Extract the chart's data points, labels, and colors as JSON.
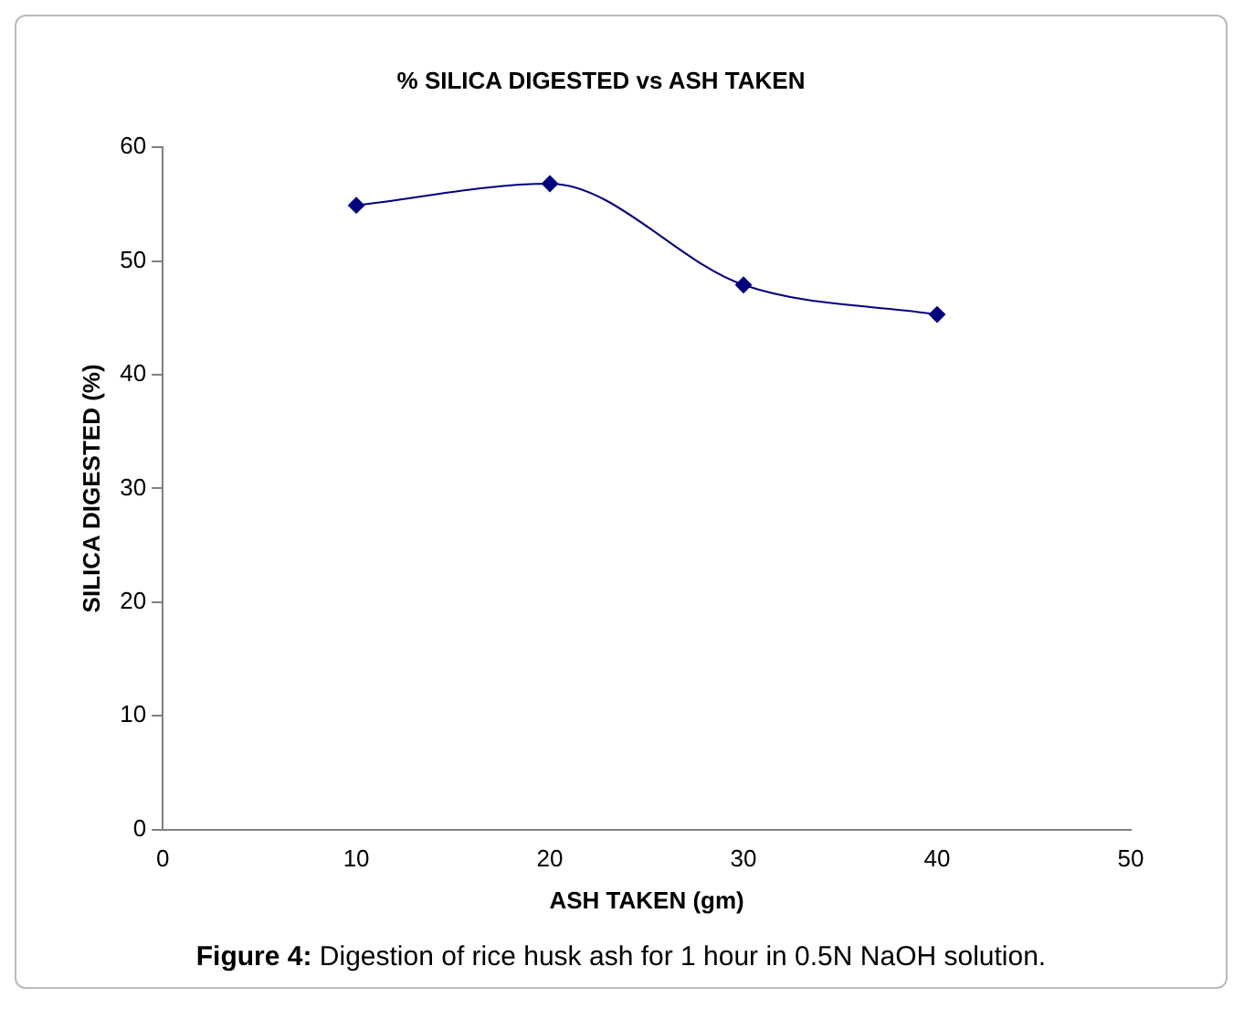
{
  "chart_data": {
    "type": "line",
    "title": "% SILICA DIGESTED vs ASH TAKEN",
    "xlabel": "ASH TAKEN (gm)",
    "ylabel": "SILICA DIGESTED (%)",
    "x": [
      10,
      20,
      30,
      40
    ],
    "series": [
      {
        "color": "#000080",
        "values": [
          54.9,
          56.8,
          47.9,
          45.3
        ]
      }
    ],
    "xlim": [
      0,
      50
    ],
    "xticks": [
      0,
      10,
      20,
      30,
      40,
      50
    ],
    "ylim": [
      0,
      60
    ],
    "yticks": [
      0,
      10,
      20,
      30,
      40,
      50,
      60
    ],
    "grid": false,
    "legend": false,
    "marker": "diamond",
    "line_style": "solid",
    "annotations": [
      "Figure 4: Digestion of rice husk ash for 1 hour in 0.5N NaOH solution."
    ]
  }
}
